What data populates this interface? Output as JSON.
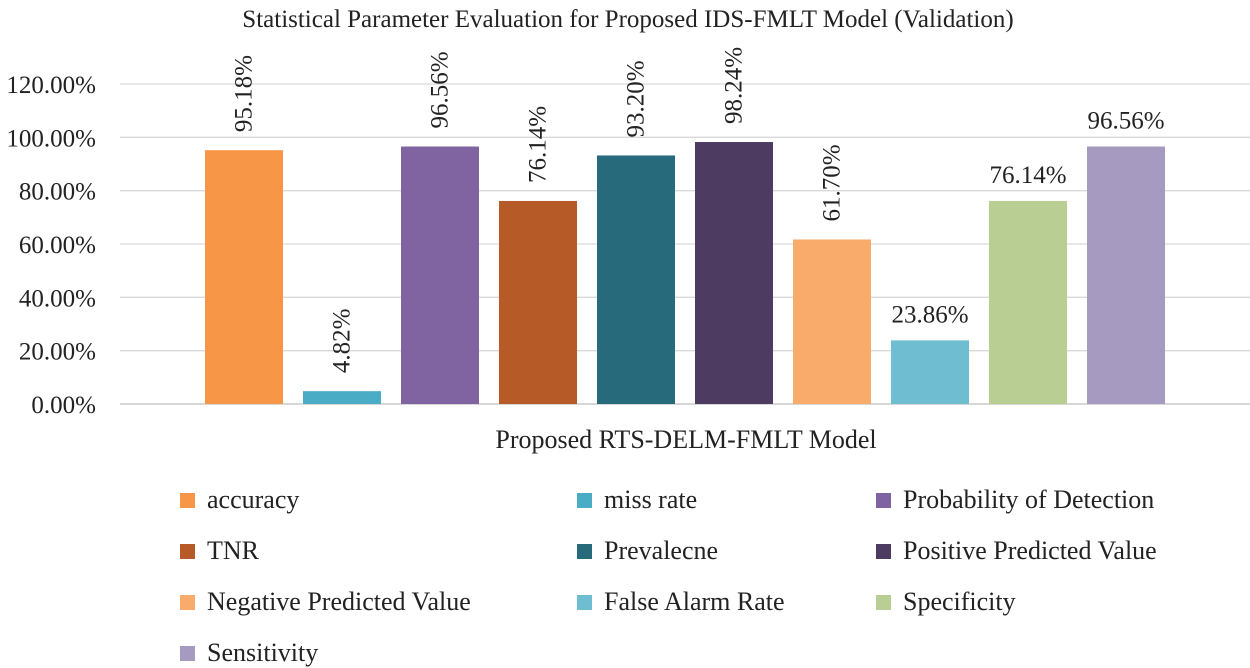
{
  "chart_data": {
    "type": "bar",
    "title": "Statistical Parameter Evaluation for Proposed IDS-FMLT Model (Validation)",
    "xlabel": "Proposed RTS-DELM-FMLT Model",
    "ylabel": "",
    "ylim": [
      0,
      120
    ],
    "yticks": [
      0,
      20,
      40,
      60,
      80,
      100,
      120
    ],
    "ytick_labels": [
      "0.00%",
      "20.00%",
      "40.00%",
      "60.00%",
      "80.00%",
      "100.00%",
      "120.00%"
    ],
    "grid": true,
    "legend_position": "bottom",
    "series": [
      {
        "name": "accuracy",
        "value": 95.18,
        "label": "95.18%",
        "color": "#F79646",
        "label_rotated": true
      },
      {
        "name": "miss rate",
        "value": 4.82,
        "label": "4.82%",
        "color": "#4BACC6",
        "label_rotated": true
      },
      {
        "name": "Probability of Detection",
        "value": 96.56,
        "label": "96.56%",
        "color": "#8064A2",
        "label_rotated": true
      },
      {
        "name": "TNR",
        "value": 76.14,
        "label": "76.14%",
        "color": "#B65A28",
        "label_rotated": true
      },
      {
        "name": "Prevalecne",
        "value": 93.2,
        "label": "93.20%",
        "color": "#276A7C",
        "label_rotated": true
      },
      {
        "name": "Positive Predicted Value",
        "value": 98.24,
        "label": "98.24%",
        "color": "#4D3B62",
        "label_rotated": true
      },
      {
        "name": "Negative Predicted Value",
        "value": 61.7,
        "label": "61.70%",
        "color": "#F9AB6C",
        "label_rotated": true
      },
      {
        "name": "False Alarm Rate",
        "value": 23.86,
        "label": "23.86%",
        "color": "#6EBDD1",
        "label_rotated": false
      },
      {
        "name": "Specificity",
        "value": 76.14,
        "label": "76.14%",
        "color": "#B8CE92",
        "label_rotated": false
      },
      {
        "name": "Sensitivity",
        "value": 96.56,
        "label": "96.56%",
        "color": "#A79AC0",
        "label_rotated": false
      }
    ]
  }
}
